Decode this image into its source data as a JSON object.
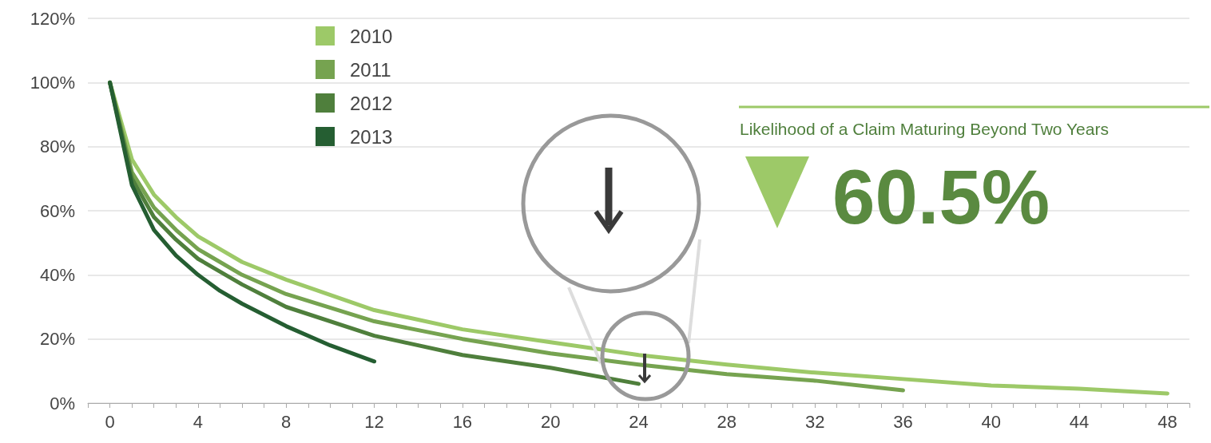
{
  "chart_data": {
    "type": "line",
    "series": [
      {
        "name": "2010",
        "color": "#9dc968",
        "x": [
          0,
          1,
          2,
          3,
          4,
          5,
          6,
          8,
          12,
          16,
          20,
          24,
          28,
          32,
          36,
          40,
          44,
          48
        ],
        "values": [
          100,
          76,
          65,
          58,
          52,
          48,
          44,
          38.5,
          29,
          23,
          19,
          15,
          12,
          9.5,
          7.5,
          5.5,
          4.5,
          3
        ]
      },
      {
        "name": "2011",
        "color": "#76a350",
        "x": [
          0,
          1,
          2,
          3,
          4,
          6,
          8,
          12,
          16,
          20,
          24,
          28,
          32,
          36
        ],
        "values": [
          100,
          72,
          61,
          54,
          48,
          40,
          34,
          25.5,
          20,
          15.5,
          12,
          9,
          7,
          4
        ]
      },
      {
        "name": "2012",
        "color": "#4f7f3c",
        "x": [
          0,
          1,
          2,
          3,
          4,
          6,
          8,
          12,
          16,
          20,
          24
        ],
        "values": [
          100,
          70,
          58,
          51,
          45,
          37,
          30,
          21,
          15,
          11,
          6
        ]
      },
      {
        "name": "2013",
        "color": "#255e32",
        "x": [
          0,
          1,
          2,
          3,
          4,
          5,
          6,
          8,
          10,
          12
        ],
        "values": [
          100,
          68,
          54,
          46,
          40,
          35,
          31,
          24,
          18,
          13
        ]
      }
    ],
    "xlim": [
      -1,
      49
    ],
    "xticks": [
      0,
      4,
      8,
      12,
      16,
      20,
      24,
      28,
      32,
      36,
      40,
      44,
      48
    ],
    "ylim": [
      0,
      120
    ],
    "yticks": [
      {
        "value": 0,
        "label": "0%"
      },
      {
        "value": 20,
        "label": "20%"
      },
      {
        "value": 40,
        "label": "40%"
      },
      {
        "value": 60,
        "label": "60%"
      },
      {
        "value": 80,
        "label": "80%"
      },
      {
        "value": 100,
        "label": "100%"
      },
      {
        "value": 120,
        "label": "120%"
      }
    ],
    "grid": "y",
    "legend": "top left",
    "marker": "none",
    "line_style": "solid",
    "annotations": [
      "Likelihood of a Claim Maturing Beyond Two Years",
      "60.5%"
    ]
  }
}
